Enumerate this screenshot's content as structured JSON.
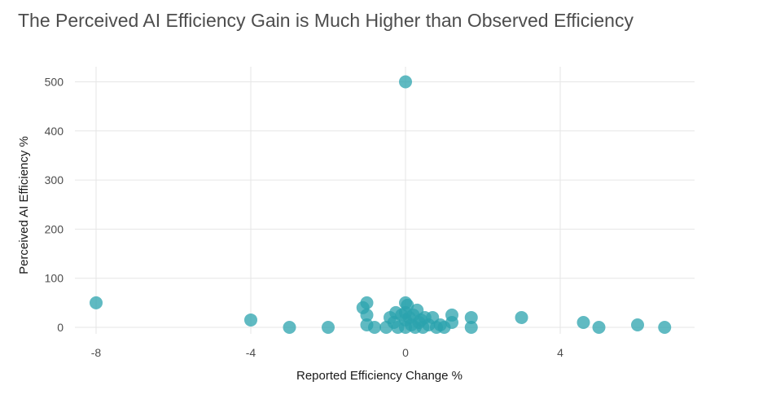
{
  "chart_data": {
    "type": "scatter",
    "title": "The Perceived AI Efficiency Gain is Much Higher than Observed Efficiency",
    "xlabel": "Reported Efficiency Change %",
    "ylabel": "Perceived AI Efficiency %",
    "xlim": [
      -8.3,
      7.4
    ],
    "ylim": [
      -12,
      520
    ],
    "xticks": [
      -8,
      -4,
      0,
      4
    ],
    "yticks": [
      0,
      100,
      200,
      300,
      400,
      500
    ],
    "grid": true,
    "color": "#2ba3ad",
    "points": [
      {
        "x": -8,
        "y": 50
      },
      {
        "x": -4,
        "y": 15
      },
      {
        "x": -3,
        "y": 0
      },
      {
        "x": -2,
        "y": 0
      },
      {
        "x": -1.1,
        "y": 40
      },
      {
        "x": -1,
        "y": 50
      },
      {
        "x": -1,
        "y": 25
      },
      {
        "x": -1,
        "y": 5
      },
      {
        "x": -0.8,
        "y": 0
      },
      {
        "x": -0.5,
        "y": 0
      },
      {
        "x": -0.4,
        "y": 20
      },
      {
        "x": -0.3,
        "y": 10
      },
      {
        "x": -0.25,
        "y": 30
      },
      {
        "x": -0.2,
        "y": 0
      },
      {
        "x": -0.1,
        "y": 25
      },
      {
        "x": 0,
        "y": 500
      },
      {
        "x": 0,
        "y": 50
      },
      {
        "x": 0,
        "y": 30
      },
      {
        "x": 0,
        "y": 15
      },
      {
        "x": 0,
        "y": 0
      },
      {
        "x": 0.05,
        "y": 45
      },
      {
        "x": 0.1,
        "y": 20
      },
      {
        "x": 0.15,
        "y": 5
      },
      {
        "x": 0.2,
        "y": 25
      },
      {
        "x": 0.25,
        "y": 0
      },
      {
        "x": 0.3,
        "y": 35
      },
      {
        "x": 0.35,
        "y": 10
      },
      {
        "x": 0.4,
        "y": 15
      },
      {
        "x": 0.45,
        "y": 0
      },
      {
        "x": 0.5,
        "y": 20
      },
      {
        "x": 0.6,
        "y": 5
      },
      {
        "x": 0.7,
        "y": 20
      },
      {
        "x": 0.8,
        "y": 0
      },
      {
        "x": 0.9,
        "y": 5
      },
      {
        "x": 1.0,
        "y": 0
      },
      {
        "x": 1.2,
        "y": 10
      },
      {
        "x": 1.2,
        "y": 25
      },
      {
        "x": 1.7,
        "y": 20
      },
      {
        "x": 1.7,
        "y": 0
      },
      {
        "x": 3,
        "y": 20
      },
      {
        "x": 4.6,
        "y": 10
      },
      {
        "x": 5,
        "y": 0
      },
      {
        "x": 6,
        "y": 5
      },
      {
        "x": 6.7,
        "y": 0
      }
    ]
  }
}
